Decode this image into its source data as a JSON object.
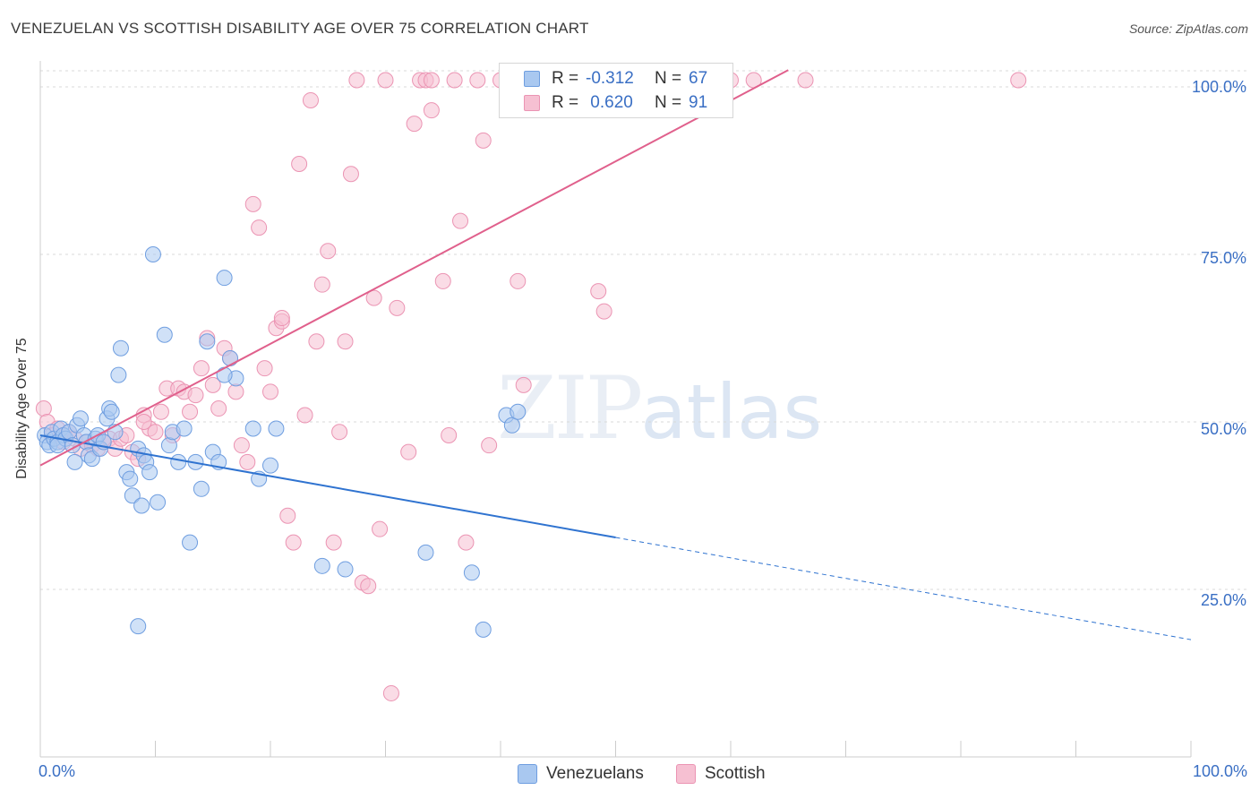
{
  "header": {
    "title": "VENEZUELAN VS SCOTTISH DISABILITY AGE OVER 75 CORRELATION CHART",
    "source": "Source: ZipAtlas.com"
  },
  "watermark": {
    "zip": "ZIP",
    "atlas": "atlas"
  },
  "legend": {
    "rows": [
      {
        "r_label": "R =",
        "r_value": "-0.312",
        "n_label": "N =",
        "n_value": "67"
      },
      {
        "r_label": "R =",
        "r_value": " 0.620",
        "n_label": "N =",
        "n_value": "91"
      }
    ],
    "bottom": [
      {
        "label": "Venezuelans"
      },
      {
        "label": "Scottish"
      }
    ]
  },
  "colors": {
    "blue_fill": "#a9c8f0",
    "blue_stroke": "#6f9ee0",
    "blue_line": "#2f73d0",
    "pink_fill": "#f6c0d2",
    "pink_stroke": "#eb94b3",
    "pink_line": "#e0608c",
    "grid": "#d9d9d9",
    "axis_text": "#3a6fc4"
  },
  "chart_data": {
    "type": "scatter",
    "title": "VENEZUELAN VS SCOTTISH DISABILITY AGE OVER 75 CORRELATION CHART",
    "xlabel": "",
    "ylabel": "Disability Age Over 75",
    "xlim": [
      0,
      100
    ],
    "ylim": [
      0,
      100
    ],
    "x_tick_labels": [
      "0.0%",
      "100.0%"
    ],
    "y_ticks": [
      25,
      50,
      75,
      100
    ],
    "y_tick_labels": [
      "25.0%",
      "50.0%",
      "75.0%",
      "100.0%"
    ],
    "series": [
      {
        "name": "Venezuelans",
        "r": -0.312,
        "n": 67,
        "trend": {
          "x0": 0,
          "y0": 48.0,
          "x_solid_end": 50,
          "x1": 100,
          "y1": 17.5
        },
        "points": [
          [
            0.4,
            48
          ],
          [
            0.6,
            47
          ],
          [
            0.8,
            46.5
          ],
          [
            1.0,
            48.5
          ],
          [
            1.2,
            47.5
          ],
          [
            1.5,
            47
          ],
          [
            1.8,
            49
          ],
          [
            2.0,
            48
          ],
          [
            2.2,
            47.5
          ],
          [
            2.5,
            48.5
          ],
          [
            2.8,
            46.5
          ],
          [
            3.0,
            44
          ],
          [
            3.2,
            49.5
          ],
          [
            3.5,
            50.5
          ],
          [
            3.8,
            48
          ],
          [
            4.0,
            47
          ],
          [
            4.2,
            45
          ],
          [
            4.5,
            44.5
          ],
          [
            4.8,
            47.5
          ],
          [
            5.0,
            48
          ],
          [
            5.2,
            46
          ],
          [
            5.5,
            47
          ],
          [
            5.8,
            50.5
          ],
          [
            6.0,
            52
          ],
          [
            6.2,
            51.5
          ],
          [
            6.5,
            48.5
          ],
          [
            6.8,
            57
          ],
          [
            7.0,
            61
          ],
          [
            7.5,
            42.5
          ],
          [
            7.8,
            41.5
          ],
          [
            8.0,
            39
          ],
          [
            8.5,
            46
          ],
          [
            8.8,
            37.5
          ],
          [
            9.0,
            45
          ],
          [
            9.2,
            44
          ],
          [
            9.5,
            42.5
          ],
          [
            9.8,
            75
          ],
          [
            10.2,
            38
          ],
          [
            10.8,
            63
          ],
          [
            11.2,
            46.5
          ],
          [
            11.5,
            48.5
          ],
          [
            12.0,
            44
          ],
          [
            12.5,
            49
          ],
          [
            13.0,
            32
          ],
          [
            13.5,
            44
          ],
          [
            14.0,
            40
          ],
          [
            14.5,
            62
          ],
          [
            15.0,
            45.5
          ],
          [
            15.5,
            44
          ],
          [
            16.0,
            71.5
          ],
          [
            16.5,
            59.5
          ],
          [
            17.0,
            56.5
          ],
          [
            18.5,
            49
          ],
          [
            19.0,
            41.5
          ],
          [
            20.0,
            43.5
          ],
          [
            20.5,
            49
          ],
          [
            24.5,
            28.5
          ],
          [
            26.5,
            28
          ],
          [
            33.5,
            30.5
          ],
          [
            40.5,
            51
          ],
          [
            41.0,
            49.5
          ],
          [
            41.5,
            51.5
          ],
          [
            37.5,
            27.5
          ],
          [
            38.5,
            19
          ],
          [
            8.5,
            19.5
          ],
          [
            16.0,
            57
          ],
          [
            1.5,
            46.5
          ]
        ]
      },
      {
        "name": "Scottish",
        "r": 0.62,
        "n": 91,
        "trend": {
          "x0": 0,
          "y0": 43.5,
          "x1": 65,
          "y1": 102.5
        },
        "points": [
          [
            0.3,
            52
          ],
          [
            0.6,
            50
          ],
          [
            1.0,
            48
          ],
          [
            1.5,
            49
          ],
          [
            2.0,
            47
          ],
          [
            2.5,
            48.5
          ],
          [
            3.0,
            47.5
          ],
          [
            3.5,
            46
          ],
          [
            4.0,
            47
          ],
          [
            4.5,
            46.5
          ],
          [
            5.0,
            46
          ],
          [
            5.5,
            47
          ],
          [
            6.0,
            47.5
          ],
          [
            6.5,
            46
          ],
          [
            7.0,
            47.5
          ],
          [
            7.5,
            48
          ],
          [
            8.0,
            45.5
          ],
          [
            8.5,
            44.5
          ],
          [
            9.0,
            51
          ],
          [
            9.5,
            49
          ],
          [
            10.0,
            48.5
          ],
          [
            10.5,
            51.5
          ],
          [
            11.0,
            55
          ],
          [
            11.5,
            48
          ],
          [
            12.0,
            55
          ],
          [
            12.5,
            54.5
          ],
          [
            13.0,
            51.5
          ],
          [
            13.5,
            54
          ],
          [
            14.0,
            58
          ],
          [
            14.5,
            62.5
          ],
          [
            15.0,
            55.5
          ],
          [
            15.5,
            52
          ],
          [
            16.0,
            61
          ],
          [
            16.5,
            59.5
          ],
          [
            17.0,
            54.5
          ],
          [
            17.5,
            46.5
          ],
          [
            18.0,
            44
          ],
          [
            18.5,
            82.5
          ],
          [
            19.0,
            79
          ],
          [
            19.5,
            58
          ],
          [
            20.0,
            54.5
          ],
          [
            20.5,
            64
          ],
          [
            21.0,
            65
          ],
          [
            21.5,
            36
          ],
          [
            22.0,
            32
          ],
          [
            22.5,
            88.5
          ],
          [
            23.0,
            51
          ],
          [
            23.5,
            98
          ],
          [
            24.0,
            62
          ],
          [
            24.5,
            70.5
          ],
          [
            25.0,
            75.5
          ],
          [
            25.5,
            32
          ],
          [
            26.0,
            48.5
          ],
          [
            26.5,
            62
          ],
          [
            27.0,
            87
          ],
          [
            27.5,
            101
          ],
          [
            28.0,
            26
          ],
          [
            28.5,
            25.5
          ],
          [
            29.0,
            68.5
          ],
          [
            29.5,
            34
          ],
          [
            30.0,
            101
          ],
          [
            30.5,
            9.5
          ],
          [
            31.0,
            67
          ],
          [
            32.0,
            45.5
          ],
          [
            32.5,
            94.5
          ],
          [
            33.0,
            101
          ],
          [
            33.5,
            101
          ],
          [
            34.0,
            96.5
          ],
          [
            35.0,
            71
          ],
          [
            35.5,
            48
          ],
          [
            36.0,
            101
          ],
          [
            36.5,
            80
          ],
          [
            37.0,
            32
          ],
          [
            38.0,
            101
          ],
          [
            38.5,
            92
          ],
          [
            39.0,
            46.5
          ],
          [
            40.0,
            101
          ],
          [
            41.5,
            71
          ],
          [
            42.0,
            55.5
          ],
          [
            45.0,
            101
          ],
          [
            48.5,
            69.5
          ],
          [
            49.0,
            66.5
          ],
          [
            55.0,
            101
          ],
          [
            60.0,
            101
          ],
          [
            62.0,
            101
          ],
          [
            66.5,
            101
          ],
          [
            85.0,
            101
          ],
          [
            34.0,
            101
          ],
          [
            21.0,
            65.5
          ],
          [
            9.0,
            50
          ],
          [
            2.0,
            48
          ]
        ]
      }
    ]
  }
}
